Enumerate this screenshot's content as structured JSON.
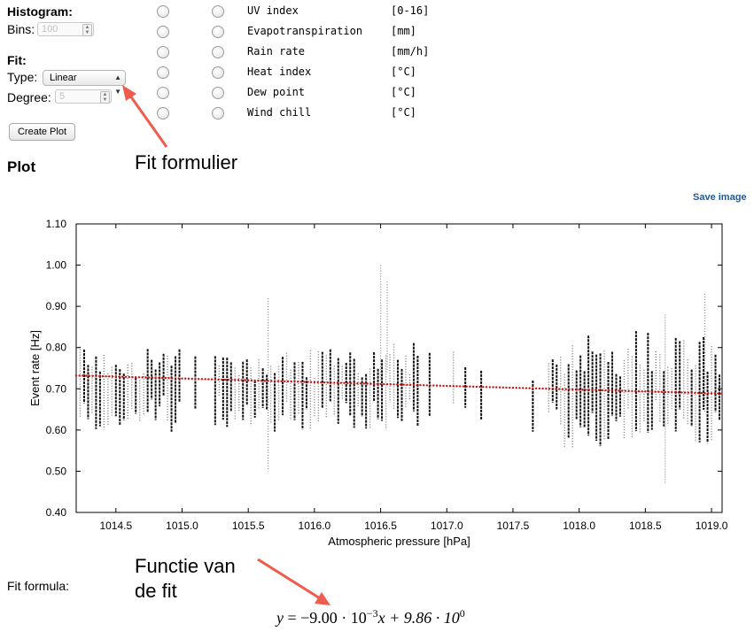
{
  "form": {
    "histogram_heading": "Histogram:",
    "bins_label": "Bins:",
    "bins_value": "100",
    "fit_heading": "Fit:",
    "type_label": "Type:",
    "type_value": "Linear",
    "degree_label": "Degree:",
    "degree_value": "5",
    "create_button": "Create Plot"
  },
  "variables": [
    {
      "name": "UV index",
      "unit": "[0-16]"
    },
    {
      "name": "Evapotranspiration",
      "unit": "[mm]"
    },
    {
      "name": "Rain rate",
      "unit": "[mm/h]"
    },
    {
      "name": "Heat index",
      "unit": "[°C]"
    },
    {
      "name": "Dew point",
      "unit": "[°C]"
    },
    {
      "name": "Wind chill",
      "unit": "[°C]"
    }
  ],
  "plot_heading": "Plot",
  "save_image": "Save image",
  "annotations": {
    "fit_form": "Fit formulier",
    "fit_function_line1": "Functie van",
    "fit_function_line2": "de fit"
  },
  "fit_formula_label": "Fit formula:",
  "fit_formula": {
    "lhs": "y",
    "eq": " = −9.00 · 10",
    "exp1": "−3",
    "mid": "x + 9.86 · 10",
    "exp2": "0"
  },
  "colors": {
    "accent": "#1f5a9e",
    "fit_points": "#cc1111",
    "arrow": "#ef5b4c"
  },
  "chart_data": {
    "type": "scatter",
    "xlabel": "Atmospheric pressure [hPa]",
    "ylabel": "Event rate [Hz]",
    "xlim": [
      1014.2,
      1019.08
    ],
    "ylim": [
      0.4,
      1.1
    ],
    "xticks": [
      1014.5,
      1015.0,
      1015.5,
      1016.0,
      1016.5,
      1017.0,
      1017.5,
      1018.0,
      1018.5,
      1019.0
    ],
    "xtick_labels": [
      "1014.5",
      "1015.0",
      "1015.5",
      "1016.0",
      "1016.5",
      "1017.0",
      "1017.5",
      "1018.0",
      "1018.5",
      "1019.0"
    ],
    "yticks": [
      0.4,
      0.5,
      0.6,
      0.7,
      0.8,
      0.9,
      1.0,
      1.1
    ],
    "ytick_labels": [
      "0.40",
      "0.50",
      "0.60",
      "0.70",
      "0.80",
      "0.90",
      "1.00",
      "1.10"
    ],
    "grid": false,
    "legend": "none",
    "series": [
      {
        "values_note": "event rate measurements, roughly 0.47–1.00 Hz spread around 0.70"
      },
      {
        "fit": {
          "slope": -0.009,
          "intercept": 9.86
        }
      }
    ]
  }
}
